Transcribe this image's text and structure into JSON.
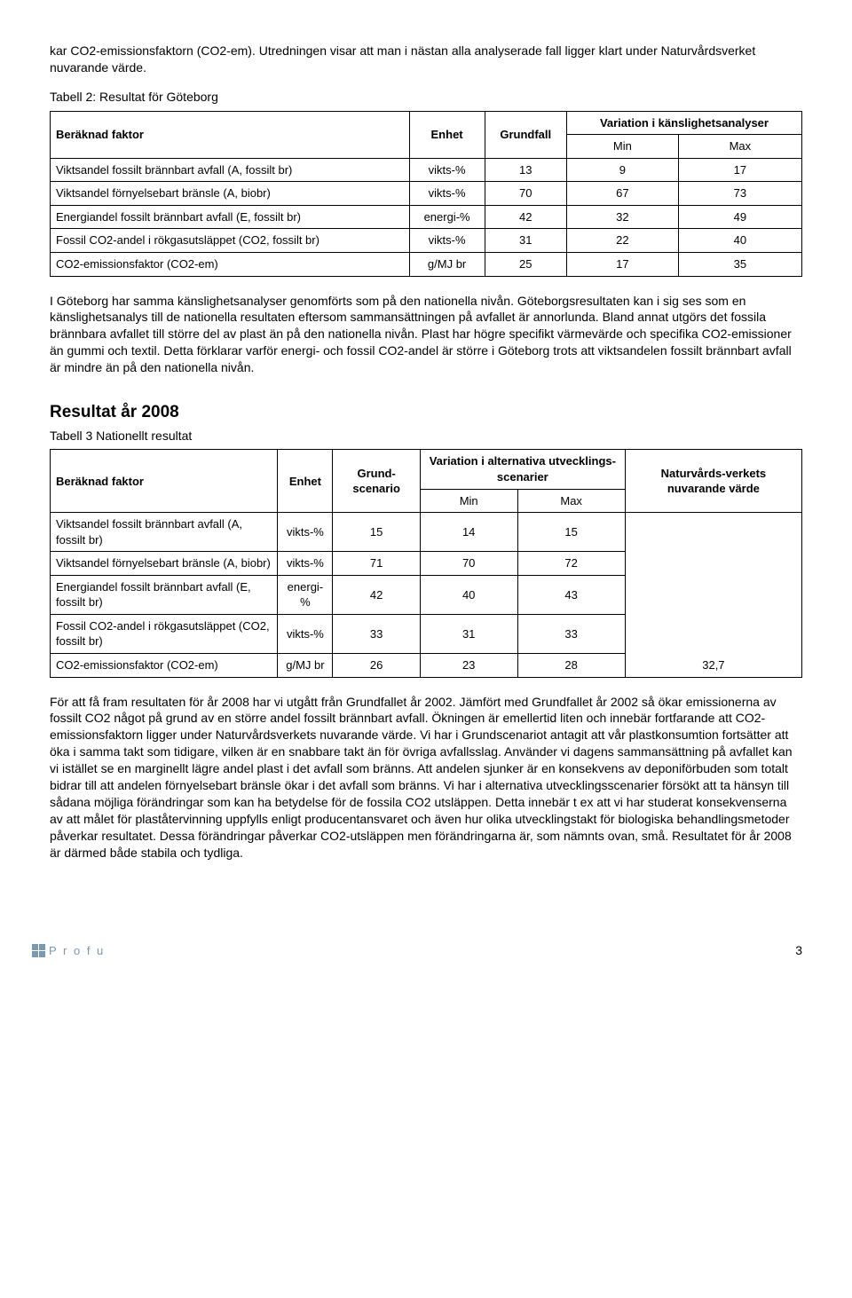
{
  "intro_para": "kar CO2-emissionsfaktorn (CO2-em). Utredningen visar att man i nästan alla analyserade fall ligger klart under Naturvårdsverket nuvarande värde.",
  "table2": {
    "caption": "Tabell 2:  Resultat för Göteborg",
    "head": {
      "c1": "Beräknad faktor",
      "c2": "Enhet",
      "c3": "Grundfall",
      "c4": "Variation i känslighetsanalyser",
      "min": "Min",
      "max": "Max"
    },
    "rows": [
      {
        "label": "Viktsandel fossilt brännbart avfall (A, fossilt br)",
        "unit": "vikts-%",
        "base": "13",
        "min": "9",
        "max": "17"
      },
      {
        "label": "Viktsandel förnyelsebart bränsle (A, biobr)",
        "unit": "vikts-%",
        "base": "70",
        "min": "67",
        "max": "73"
      },
      {
        "label": "Energiandel fossilt brännbart avfall (E, fossilt br)",
        "unit": "energi-%",
        "base": "42",
        "min": "32",
        "max": "49"
      },
      {
        "label": "Fossil CO2-andel i rökgasutsläppet (CO2, fossilt br)",
        "unit": "vikts-%",
        "base": "31",
        "min": "22",
        "max": "40"
      },
      {
        "label": "CO2-emissionsfaktor (CO2-em)",
        "unit": "g/MJ br",
        "base": "25",
        "min": "17",
        "max": "35"
      }
    ]
  },
  "mid_para": "I Göteborg har samma känslighetsanalyser genomförts som på den nationella nivån. Göteborgsresultaten kan i sig ses som en känslighetsanalys till de nationella resultaten eftersom sammansättningen på avfallet är annorlunda. Bland annat utgörs det fossila brännbara avfallet till större del av plast än på den nationella nivån. Plast har högre specifikt värmevärde och specifika CO2-emissioner än gummi och textil. Detta förklarar varför energi- och fossil CO2-andel är större i Göteborg trots att viktsandelen fossilt brännbart avfall är mindre än på den nationella nivån.",
  "section": {
    "heading": "Resultat år 2008",
    "sub": "Tabell 3 Nationellt resultat"
  },
  "table3": {
    "head": {
      "c1": "Beräknad faktor",
      "c2": "Enhet",
      "c3": "Grund-scenario",
      "c4": "Variation i alternativa utvecklings-scenarier",
      "c5": "Naturvårds-verkets nuvarande värde",
      "min": "Min",
      "max": "Max"
    },
    "rows": [
      {
        "label": "Viktsandel fossilt brännbart avfall (A, fossilt br)",
        "unit": "vikts-%",
        "base": "15",
        "min": "14",
        "max": "15",
        "nv": ""
      },
      {
        "label": "Viktsandel förnyelsebart bränsle (A, biobr)",
        "unit": "vikts-%",
        "base": "71",
        "min": "70",
        "max": "72",
        "nv": ""
      },
      {
        "label": "Energiandel fossilt brännbart avfall (E, fossilt br)",
        "unit": "energi-%",
        "base": "42",
        "min": "40",
        "max": "43",
        "nv": ""
      },
      {
        "label": "Fossil CO2-andel i rökgasutsläppet (CO2, fossilt br)",
        "unit": "vikts-%",
        "base": "33",
        "min": "31",
        "max": "33",
        "nv": ""
      },
      {
        "label": "CO2-emissionsfaktor (CO2-em)",
        "unit": "g/MJ br",
        "base": "26",
        "min": "23",
        "max": "28",
        "nv": "32,7"
      }
    ]
  },
  "end_para": "För att få fram resultaten för år 2008 har vi utgått från Grundfallet år 2002. Jämfört med Grundfallet år 2002 så ökar emissionerna av fossilt CO2 något på grund av en större andel fossilt brännbart avfall. Ökningen är emellertid liten och innebär fortfarande att CO2-emissionsfaktorn ligger under Naturvårdsverkets nuvarande värde. Vi har i Grundscenariot antagit att vår plastkonsumtion fortsätter att öka i samma takt som tidigare, vilken är en snabbare takt än för övriga avfallsslag. Använder vi dagens sammansättning på avfallet kan vi istället se en marginellt lägre andel plast i det avfall som bränns. Att andelen sjunker är en konsekvens av deponiförbuden som totalt bidrar till att andelen förnyelsebart bränsle ökar i det avfall som bränns. Vi har i alternativa utvecklingsscenarier försökt att ta hänsyn till sådana möjliga förändringar som kan ha betydelse för de fossila CO2 utsläppen.  Detta innebär t ex att vi har studerat konsekvenserna av att målet för plaståtervinning uppfylls enligt producentansvaret och även hur olika utvecklingstakt för biologiska behandlingsmetoder påverkar resultatet. Dessa förändringar påverkar CO2-utsläppen men förändringarna är, som nämnts ovan, små. Resultatet för år 2008 är därmed både stabila och tydliga.",
  "footer": {
    "logo_text": "P r o f u",
    "page": "3"
  }
}
